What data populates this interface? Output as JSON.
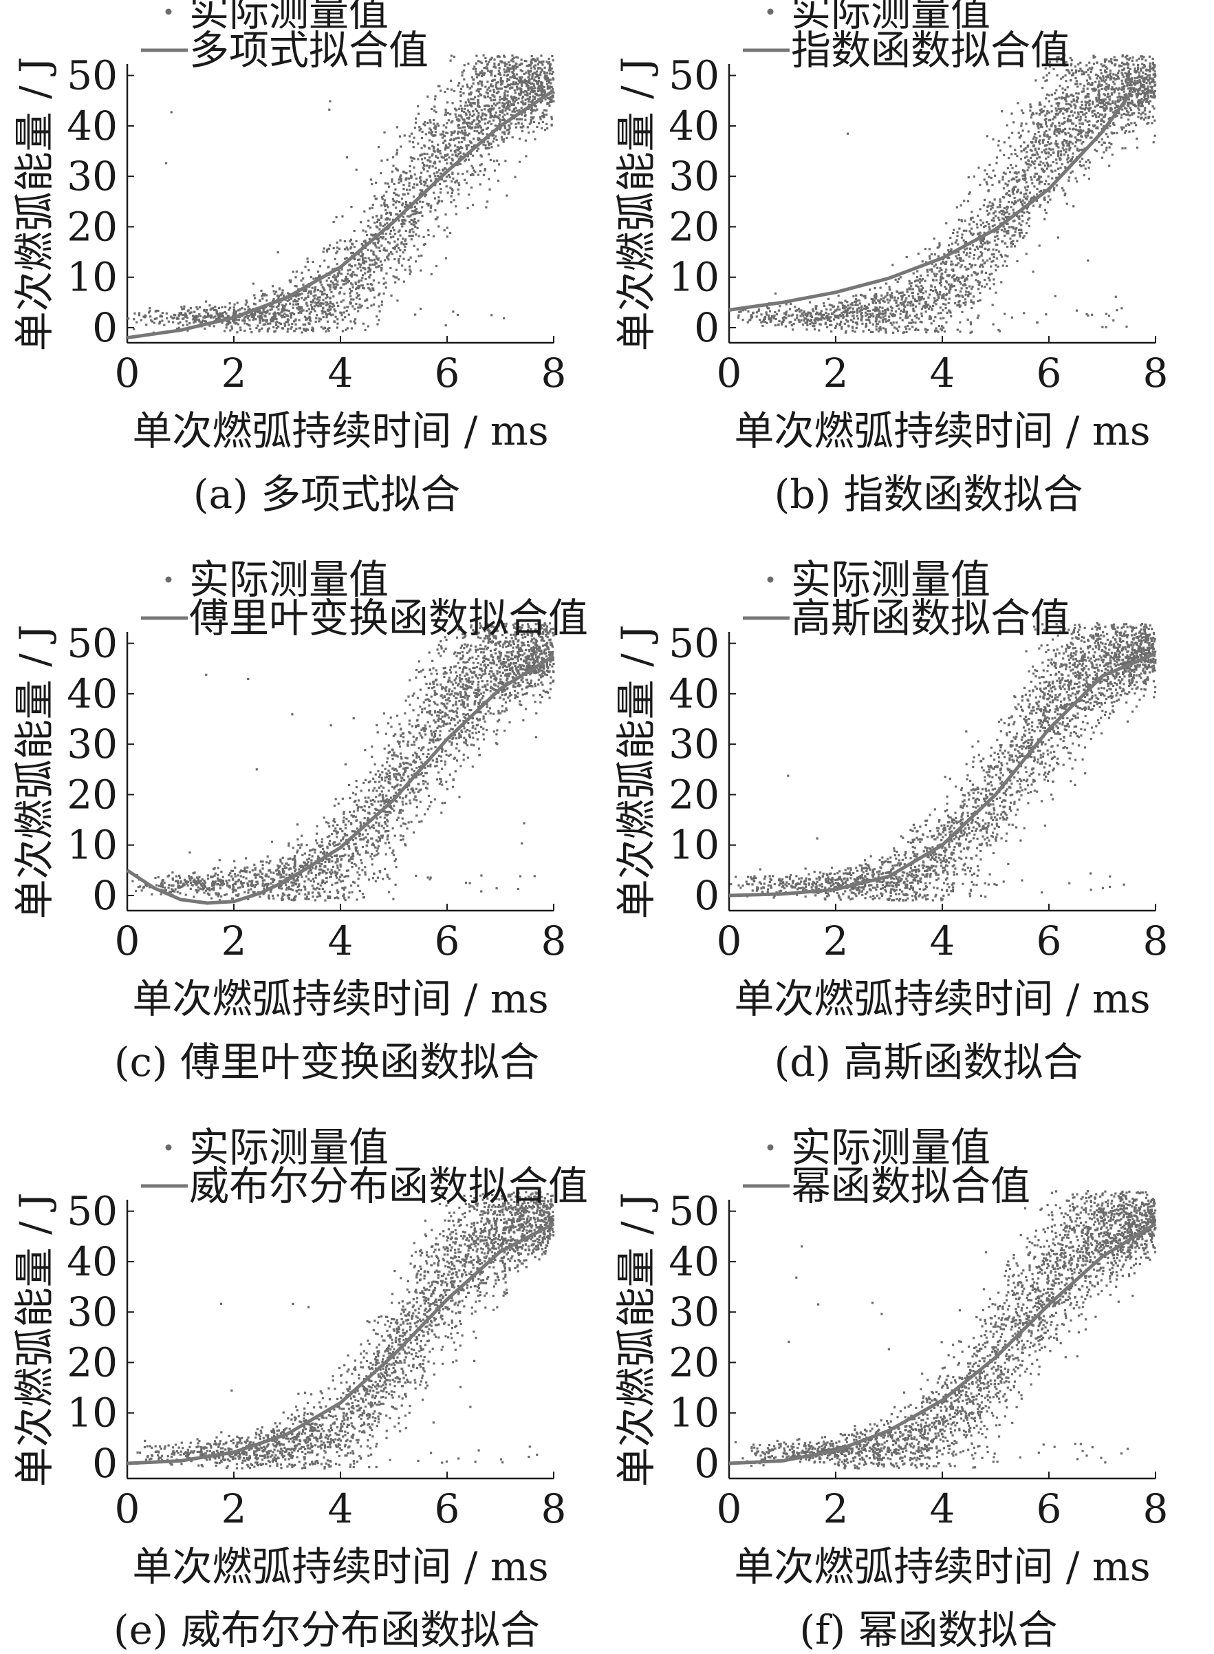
{
  "colors": {
    "marker": "#6b6b6b",
    "fit_line": "#777777",
    "axis": "#1a1a1a",
    "background": "#ffffff"
  },
  "chart_data": [
    {
      "type": "scatter",
      "panel": "(a)",
      "caption": "(a)  多项式拟合",
      "xlabel": "单次燃弧持续时间 / ms",
      "ylabel": "单次燃弧能量 / J",
      "xlim": [
        0,
        8
      ],
      "ylim": [
        -3,
        52
      ],
      "xticks": [
        "0",
        "2",
        "4",
        "6",
        "8"
      ],
      "yticks": [
        "0",
        "10",
        "20",
        "30",
        "40",
        "50"
      ],
      "grid": false,
      "legend_position": "top-left",
      "series": [
        {
          "name": "实际测量值",
          "kind": "points",
          "description": "measured arc energy, dense sigmoid-shaped point cloud rising from ~0 J near 0–2 ms to ~45–50 J at 7–8 ms"
        },
        {
          "name": "多项式拟合值",
          "kind": "line",
          "x": [
            0,
            1,
            2,
            3,
            4,
            5,
            6,
            7,
            8
          ],
          "y": [
            -2.0,
            -0.5,
            2.0,
            6.0,
            12.0,
            21.0,
            31.0,
            40.0,
            47.0
          ]
        }
      ]
    },
    {
      "type": "scatter",
      "panel": "(b)",
      "caption": "(b)  指数函数拟合",
      "xlabel": "单次燃弧持续时间 / ms",
      "ylabel": "单次燃弧能量 / J",
      "xlim": [
        0,
        8
      ],
      "ylim": [
        -3,
        52
      ],
      "xticks": [
        "0",
        "2",
        "4",
        "6",
        "8"
      ],
      "yticks": [
        "0",
        "10",
        "20",
        "30",
        "40",
        "50"
      ],
      "grid": false,
      "legend_position": "top-left",
      "series": [
        {
          "name": "实际测量值",
          "kind": "points"
        },
        {
          "name": "指数函数拟合值",
          "kind": "line",
          "x": [
            0,
            1,
            2,
            3,
            4,
            5,
            6,
            7,
            7.5
          ],
          "y": [
            3.5,
            5.0,
            7.0,
            9.8,
            13.8,
            19.5,
            27.5,
            38.8,
            46.0
          ]
        }
      ]
    },
    {
      "type": "scatter",
      "panel": "(c)",
      "caption": "(c)  傅里叶变换函数拟合",
      "xlabel": "单次燃弧持续时间 / ms",
      "ylabel": "单次燃弧能量 / J",
      "xlim": [
        0,
        8
      ],
      "ylim": [
        -3,
        52
      ],
      "xticks": [
        "0",
        "2",
        "4",
        "6",
        "8"
      ],
      "yticks": [
        "0",
        "10",
        "20",
        "30",
        "40",
        "50"
      ],
      "grid": false,
      "legend_position": "top-left",
      "series": [
        {
          "name": "实际测量值",
          "kind": "points"
        },
        {
          "name": "傅里叶变换函数拟合值",
          "kind": "line",
          "x": [
            0,
            0.5,
            1,
            1.5,
            2,
            2.5,
            3,
            4,
            5,
            6,
            7,
            8
          ],
          "y": [
            5.0,
            1.5,
            -0.8,
            -1.5,
            -1.2,
            0.5,
            3.0,
            9.5,
            19.0,
            31.0,
            41.0,
            47.5
          ]
        }
      ]
    },
    {
      "type": "scatter",
      "panel": "(d)",
      "caption": "(d)  高斯函数拟合",
      "xlabel": "单次燃弧持续时间 / ms",
      "ylabel": "单次燃弧能量 / J",
      "xlim": [
        0,
        8
      ],
      "ylim": [
        -3,
        52
      ],
      "xticks": [
        "0",
        "2",
        "4",
        "6",
        "8"
      ],
      "yticks": [
        "0",
        "10",
        "20",
        "30",
        "40",
        "50"
      ],
      "grid": false,
      "legend_position": "top-left",
      "series": [
        {
          "name": "实际测量值",
          "kind": "points"
        },
        {
          "name": "高斯函数拟合值",
          "kind": "line",
          "x": [
            0,
            1,
            2,
            3,
            4,
            5,
            6,
            7,
            8
          ],
          "y": [
            0.0,
            0.3,
            1.2,
            3.8,
            10.0,
            20.0,
            33.0,
            43.5,
            48.0
          ]
        }
      ]
    },
    {
      "type": "scatter",
      "panel": "(e)",
      "caption": "(e)  威布尔分布函数拟合",
      "xlabel": "单次燃弧持续时间 / ms",
      "ylabel": "单次燃弧能量 / J",
      "xlim": [
        0,
        8
      ],
      "ylim": [
        -3,
        52
      ],
      "xticks": [
        "0",
        "2",
        "4",
        "6",
        "8"
      ],
      "yticks": [
        "0",
        "10",
        "20",
        "30",
        "40",
        "50"
      ],
      "grid": false,
      "legend_position": "top-left",
      "series": [
        {
          "name": "实际测量值",
          "kind": "points"
        },
        {
          "name": "威布尔分布函数拟合值",
          "kind": "line",
          "x": [
            0,
            1,
            2,
            3,
            4,
            5,
            6,
            7,
            8
          ],
          "y": [
            0.0,
            0.5,
            2.2,
            5.8,
            12.0,
            21.5,
            32.5,
            42.0,
            47.5
          ]
        }
      ]
    },
    {
      "type": "scatter",
      "panel": "(f)",
      "caption": "(f)  幂函数拟合",
      "xlabel": "单次燃弧持续时间 / ms",
      "ylabel": "单次燃弧能量 / J",
      "xlim": [
        0,
        8
      ],
      "ylim": [
        -3,
        52
      ],
      "xticks": [
        "0",
        "2",
        "4",
        "6",
        "8"
      ],
      "yticks": [
        "0",
        "10",
        "20",
        "30",
        "40",
        "50"
      ],
      "grid": false,
      "legend_position": "top-left",
      "series": [
        {
          "name": "实际测量值",
          "kind": "points"
        },
        {
          "name": "幂函数拟合值",
          "kind": "line",
          "x": [
            0,
            1,
            2,
            3,
            4,
            5,
            6,
            7,
            8
          ],
          "y": [
            0.0,
            0.5,
            2.5,
            6.5,
            12.5,
            21.0,
            31.5,
            41.0,
            47.5
          ]
        }
      ]
    }
  ]
}
